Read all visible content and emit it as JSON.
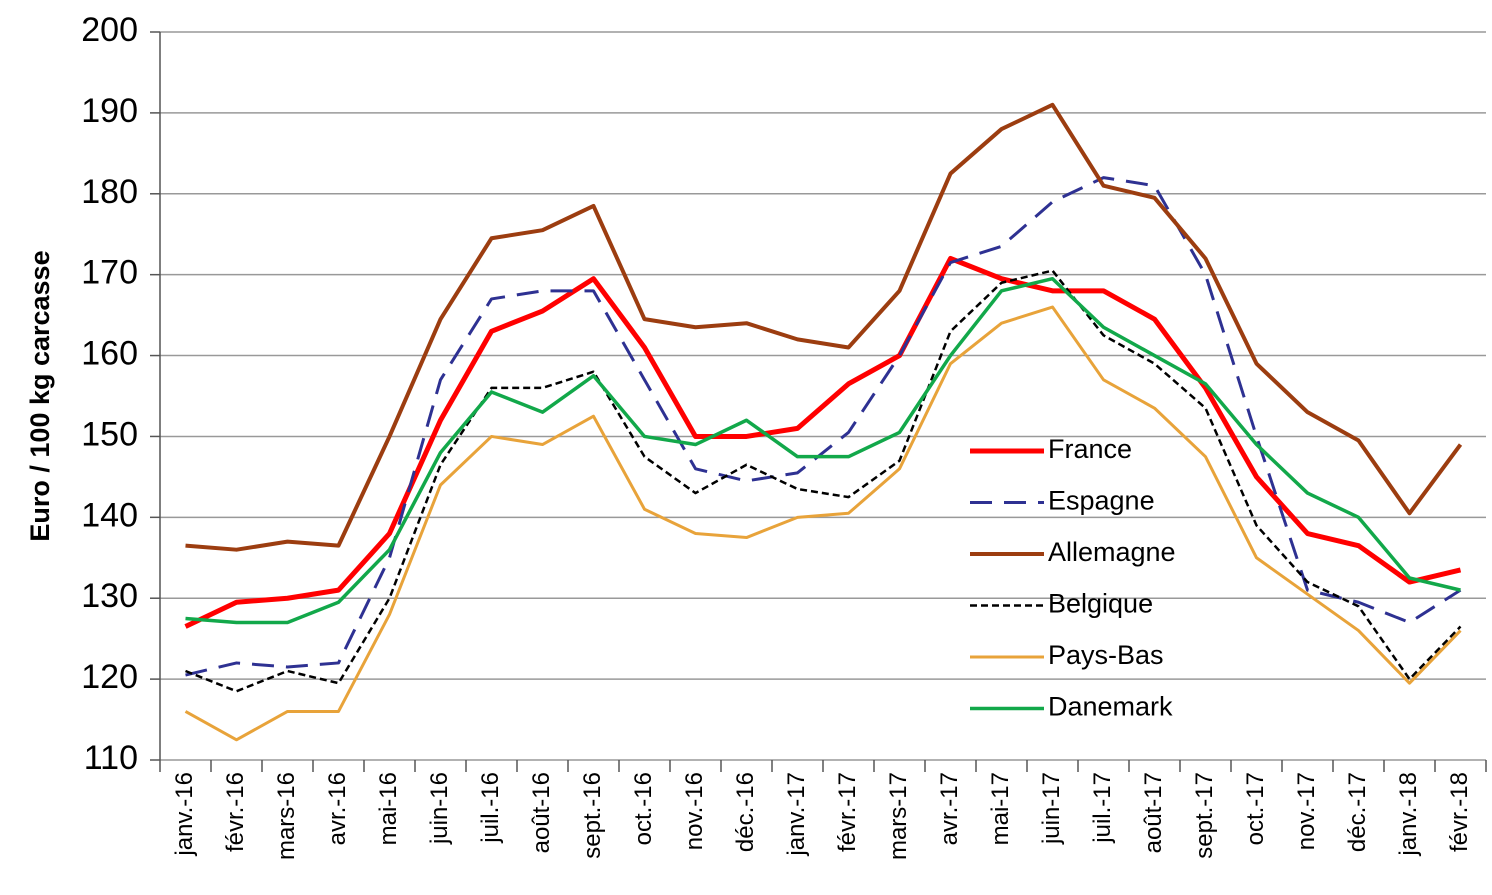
{
  "chart_data": {
    "type": "line",
    "y_label": "Euro / 100 kg carcasse",
    "categories": [
      "janv.-16",
      "févr.-16",
      "mars-16",
      "avr.-16",
      "mai-16",
      "juin-16",
      "juil.-16",
      "août-16",
      "sept.-16",
      "oct.-16",
      "nov.-16",
      "déc.-16",
      "janv.-17",
      "févr.-17",
      "mars-17",
      "avr.-17",
      "mai-17",
      "juin-17",
      "juil.-17",
      "août-17",
      "sept.-17",
      "oct.-17",
      "nov.-17",
      "déc.-17",
      "janv.-18",
      "févr.-18"
    ],
    "series": [
      {
        "name": "France",
        "color": "#ff0000",
        "width": 5,
        "style": "solid",
        "values": [
          126.5,
          129.5,
          130,
          131,
          138,
          152,
          163,
          165.5,
          169.5,
          161,
          150,
          150,
          151,
          156.5,
          160,
          172,
          169.5,
          168,
          168,
          164.5,
          156,
          145,
          138,
          136.5,
          132,
          133.5
        ]
      },
      {
        "name": "Espagne",
        "color": "#2e3192",
        "width": 3,
        "style": "dashed",
        "values": [
          120.5,
          122,
          121.5,
          122,
          135,
          157,
          167,
          168,
          168,
          157,
          146,
          144.5,
          145.5,
          150.5,
          160,
          171.5,
          173.5,
          179,
          182,
          181,
          170,
          150,
          131,
          129.5,
          127,
          131
        ]
      },
      {
        "name": "Allemagne",
        "color": "#9c3d10",
        "width": 4,
        "style": "solid",
        "values": [
          136.5,
          136,
          137,
          136.5,
          150,
          164.5,
          174.5,
          175.5,
          178.5,
          164.5,
          163.5,
          164,
          162,
          161,
          168,
          182.5,
          188,
          191,
          181,
          179.5,
          172,
          159,
          153,
          149.5,
          140.5,
          149
        ]
      },
      {
        "name": "Belgique",
        "color": "#000000",
        "width": 2.5,
        "style": "dotted",
        "values": [
          121,
          118.5,
          121,
          119.5,
          130,
          146.5,
          156,
          156,
          158,
          147.5,
          143,
          146.5,
          143.5,
          142.5,
          147,
          163,
          169,
          170.5,
          162.5,
          159,
          153.5,
          139,
          132,
          129,
          120,
          126.5
        ]
      },
      {
        "name": "Pays-Bas",
        "color": "#e8a33a",
        "width": 3,
        "style": "solid",
        "values": [
          116,
          112.5,
          116,
          116,
          128,
          144,
          150,
          149,
          152.5,
          141,
          138,
          137.5,
          140,
          140.5,
          146,
          159,
          164,
          166,
          157,
          153.5,
          147.5,
          135,
          130.5,
          126,
          119.5,
          126
        ]
      },
      {
        "name": "Danemark",
        "color": "#12a84a",
        "width": 3.5,
        "style": "solid",
        "values": [
          127.5,
          127,
          127,
          129.5,
          136,
          148,
          155.5,
          153,
          157.5,
          150,
          149,
          152,
          147.5,
          147.5,
          150.5,
          160,
          168,
          169.5,
          163.5,
          160,
          156.5,
          149,
          143,
          140,
          132.5,
          131
        ]
      }
    ],
    "ylim": [
      110,
      200
    ],
    "yticks": [
      110,
      120,
      130,
      140,
      150,
      160,
      170,
      180,
      190,
      200
    ],
    "grid": true,
    "legend": "center-right"
  }
}
